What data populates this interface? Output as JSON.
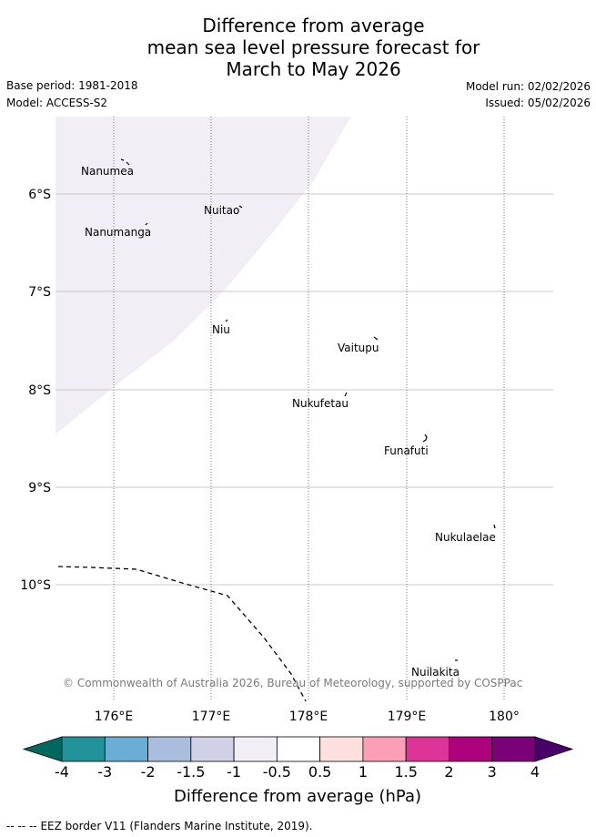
{
  "header": {
    "title_line1": "Difference from average",
    "title_line2": "mean sea level pressure forecast for",
    "title_line3": "March to May 2026",
    "base_period": "Base period: 1981-2018",
    "model": "Model: ACCESS-S2",
    "model_run": "Model run: 02/02/2026",
    "issued": "Issued: 05/02/2026"
  },
  "map": {
    "lon_labels": [
      "176°E",
      "177°E",
      "178°E",
      "179°E",
      "180°"
    ],
    "lat_labels": [
      "6°S",
      "7°S",
      "8°S",
      "9°S",
      "10°S"
    ],
    "places": [
      {
        "name": "Nanumea"
      },
      {
        "name": "Nuitao"
      },
      {
        "name": "Nanumanga"
      },
      {
        "name": "Niu"
      },
      {
        "name": "Vaitupu"
      },
      {
        "name": "Nukufetau"
      },
      {
        "name": "Funafuti"
      },
      {
        "name": "Nukulaelae"
      },
      {
        "name": "Nuilakita"
      }
    ],
    "copyright": "© Commonwealth of Australia 2026, Bureau of Meteorology, supported by COSPPac",
    "shaded_anomaly_range": "-1 to -0.5",
    "shaded_color": "#f2eef5"
  },
  "colorbar": {
    "title": "Difference from average (hPa)",
    "ticks": [
      "-4",
      "-3",
      "-2",
      "-1.5",
      "-1",
      "-0.5",
      "0.5",
      "1",
      "1.5",
      "2",
      "3",
      "4"
    ],
    "colors": [
      "#00695f",
      "#23939b",
      "#6aaed6",
      "#a9bedf",
      "#d0d1e6",
      "#f2eef5",
      "#ffffff",
      "#fde0dd",
      "#fa9fb5",
      "#dd3497",
      "#ae017e",
      "#7a0177",
      "#49006a"
    ]
  },
  "footer": {
    "legend_symbol": "--  --  --",
    "legend_text": "EEZ border V11 (Flanders Marine Institute, 2019)."
  }
}
